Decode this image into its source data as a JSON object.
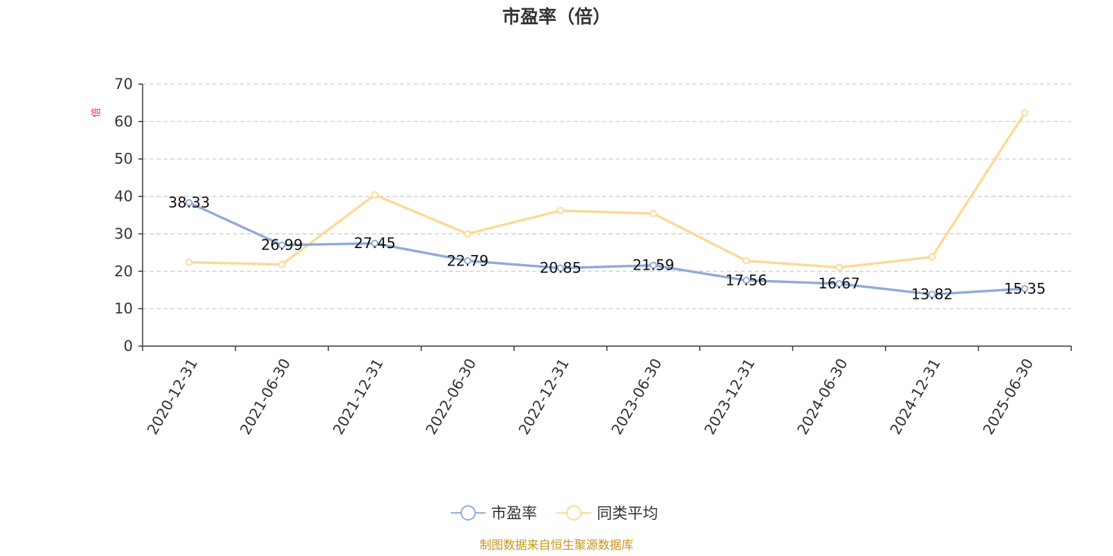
{
  "chart_data": {
    "type": "line",
    "title": "市盈率（倍）",
    "ylabel": "倍",
    "ylim": [
      0,
      70
    ],
    "yticks": [
      0,
      10,
      20,
      30,
      40,
      50,
      60,
      70
    ],
    "grid": true,
    "legend_position": "bottom-center",
    "categories": [
      "2020-12-31",
      "2021-06-30",
      "2021-12-31",
      "2022-06-30",
      "2022-12-31",
      "2023-06-30",
      "2023-12-31",
      "2024-06-30",
      "2024-12-31",
      "2025-06-30"
    ],
    "series": [
      {
        "name": "市盈率",
        "color": "#8eaad9",
        "values": [
          38.33,
          26.99,
          27.45,
          22.79,
          20.85,
          21.59,
          17.56,
          16.67,
          13.82,
          15.35
        ],
        "data_labels": [
          "38.33",
          "26.99",
          "27.45",
          "22.79",
          "20.85",
          "21.59",
          "17.56",
          "16.67",
          "13.82",
          "15.35"
        ]
      },
      {
        "name": "同类平均",
        "color": "#fcd994",
        "values": [
          22.4,
          21.8,
          40.4,
          30.0,
          36.2,
          35.4,
          22.8,
          21.0,
          23.8,
          62.3
        ]
      }
    ],
    "source": "制图数据来自恒生聚源数据库"
  }
}
